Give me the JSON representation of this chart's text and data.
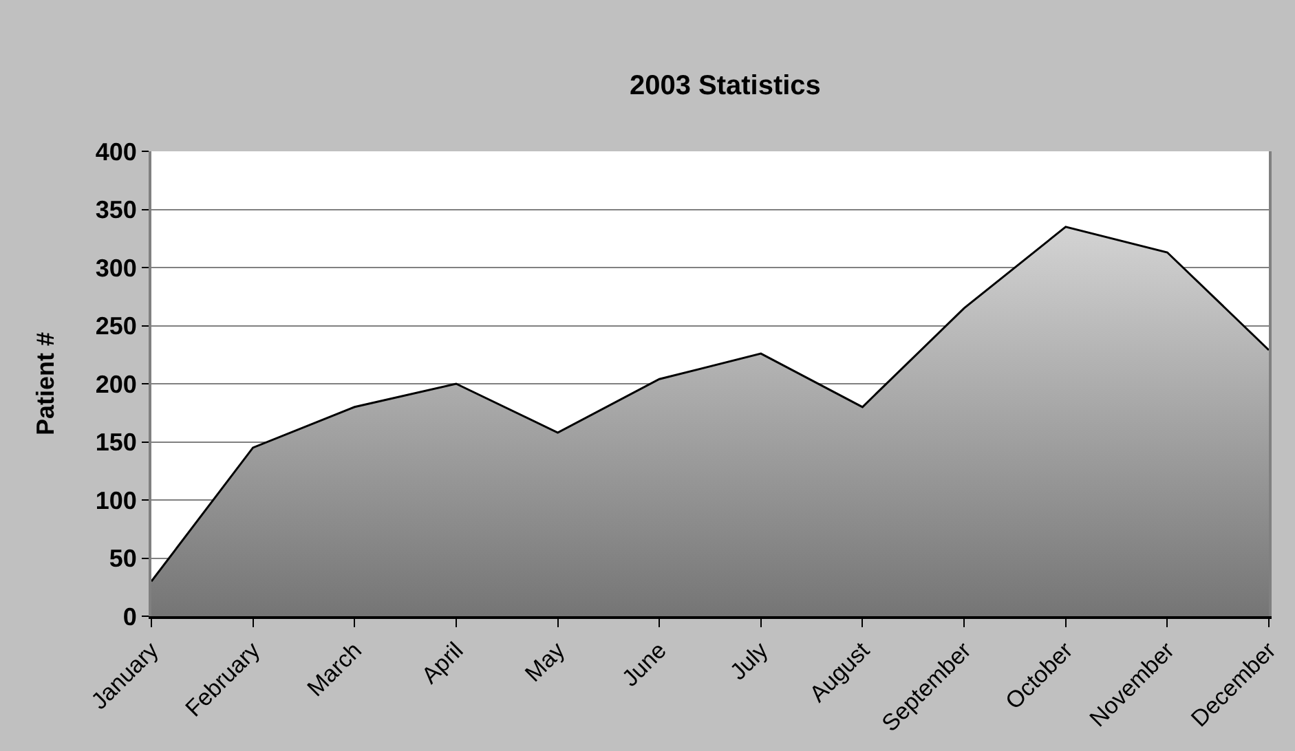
{
  "chart_data": {
    "type": "area",
    "title": "2003 Statistics",
    "ylabel": "Patient #",
    "categories": [
      "January",
      "February",
      "March",
      "April",
      "May",
      "June",
      "July",
      "August",
      "September",
      "October",
      "November",
      "December"
    ],
    "series": [
      {
        "color": "#a8a8a8",
        "values": [
          30,
          145,
          180,
          200,
          158,
          204,
          226,
          180,
          265,
          335,
          313,
          229
        ]
      }
    ],
    "ylim": [
      0,
      400
    ],
    "yticks": [
      0,
      50,
      100,
      150,
      200,
      250,
      300,
      350,
      400
    ],
    "grid": "y"
  }
}
